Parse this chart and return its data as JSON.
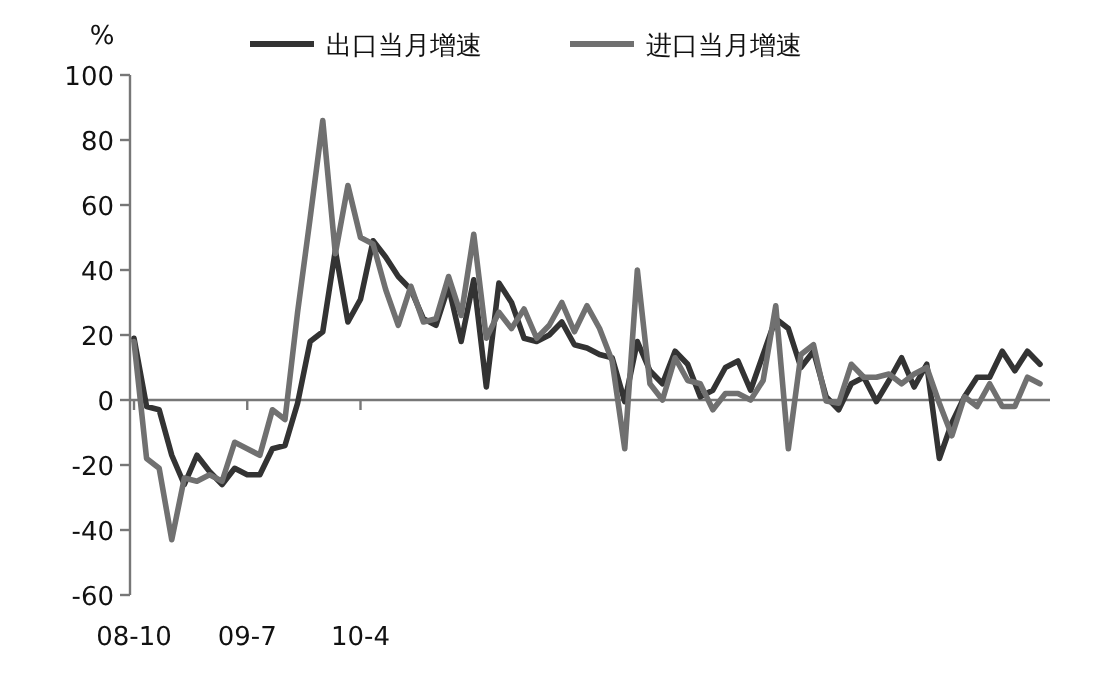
{
  "chart_data": {
    "type": "line",
    "ylabel": "%",
    "legend": "top",
    "marker": "none",
    "line_style": "solid",
    "categories": [
      "08-10",
      null,
      null,
      null,
      null,
      null,
      null,
      null,
      null,
      "09-7",
      null,
      null,
      null,
      null,
      null,
      null,
      null,
      null,
      "10-4",
      null,
      null,
      null,
      null,
      null,
      null,
      null,
      null,
      null,
      null,
      null,
      null,
      null,
      null,
      null,
      null,
      null,
      null,
      null,
      null,
      null,
      null,
      null,
      null,
      null,
      null,
      null,
      null,
      null,
      null,
      null,
      null,
      null,
      null,
      null,
      null,
      null,
      null,
      null,
      null,
      null,
      null,
      null,
      null,
      null,
      null,
      null,
      null,
      null,
      null,
      null,
      null,
      null,
      null
    ],
    "ylim": [
      -60,
      100
    ],
    "yticks": [
      -60,
      -40,
      -20,
      0,
      20,
      40,
      60,
      80,
      100
    ],
    "series": [
      {
        "name": "出口当月增速",
        "color": "#333333",
        "values": [
          19,
          -2,
          -3,
          -17,
          -26,
          -17,
          -22,
          -26,
          -21,
          -23,
          -23,
          -15,
          -14,
          -1,
          18,
          21,
          46,
          24,
          31,
          49,
          44,
          38,
          34,
          25,
          23,
          35,
          18,
          37,
          4,
          36,
          30,
          19,
          18,
          20,
          24,
          17,
          16,
          14,
          13,
          -0.5,
          18,
          9,
          5,
          15,
          11,
          1,
          3,
          10,
          12,
          3,
          14,
          25,
          22,
          10,
          15,
          1,
          -3,
          5,
          7,
          -0.5,
          6,
          13,
          4,
          11,
          -18,
          -7,
          1,
          7,
          7,
          15,
          9,
          15,
          11
        ]
      },
      {
        "name": "进口当月增速",
        "color": "#707070",
        "values": [
          18,
          -18,
          -21,
          -43,
          -24,
          -25,
          -23,
          -25,
          -13,
          -15,
          -17,
          -3,
          -6,
          27,
          56,
          86,
          45,
          66,
          50,
          48,
          34,
          23,
          35,
          24,
          25,
          38,
          26,
          51,
          19,
          27,
          22,
          28,
          19,
          23,
          30,
          21,
          29,
          22,
          12,
          -15,
          40,
          5,
          0,
          13,
          6,
          5,
          -3,
          2,
          2,
          0,
          6,
          29,
          -15,
          14,
          17,
          -0.3,
          -1,
          11,
          7,
          7,
          8,
          5,
          8,
          10,
          -1,
          -11,
          1,
          -2,
          5,
          -2,
          -2,
          7,
          5
        ]
      }
    ]
  }
}
